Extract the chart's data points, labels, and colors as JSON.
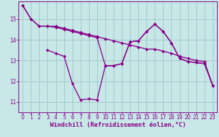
{
  "bg_color": "#c8e8e8",
  "grid_color": "#a0c8c8",
  "line_color": "#880088",
  "marker": "D",
  "markersize": 2.5,
  "linewidth": 1.0,
  "xlabel": "Windchill (Refroidissement éolien,°C)",
  "xlabel_fontsize": 6.5,
  "tick_fontsize": 5.5,
  "xlim": [
    -0.5,
    23.5
  ],
  "ylim": [
    10.5,
    15.85
  ],
  "yticks": [
    11,
    12,
    13,
    14,
    15
  ],
  "xticks": [
    0,
    1,
    2,
    3,
    4,
    5,
    6,
    7,
    8,
    9,
    10,
    11,
    12,
    13,
    14,
    15,
    16,
    17,
    18,
    19,
    20,
    21,
    22,
    23
  ],
  "line1_x": [
    0,
    1,
    2,
    3,
    4,
    5,
    6,
    7,
    8,
    9,
    10,
    11,
    12,
    13,
    14,
    15,
    16,
    17,
    18,
    19,
    20,
    21,
    22,
    23
  ],
  "line1_y": [
    15.65,
    15.0,
    14.65,
    14.65,
    14.65,
    14.55,
    14.45,
    14.35,
    14.25,
    14.15,
    14.05,
    13.95,
    13.85,
    13.75,
    13.65,
    13.55,
    13.55,
    13.45,
    13.35,
    13.2,
    13.1,
    13.0,
    12.95,
    11.8
  ],
  "line2_x": [
    0,
    1,
    2,
    3,
    4,
    5,
    6,
    7,
    8,
    9,
    10,
    11,
    12,
    13,
    14,
    15,
    16,
    17,
    18,
    19,
    20,
    21,
    22,
    23
  ],
  "line2_y": [
    15.65,
    15.0,
    14.65,
    14.65,
    14.6,
    14.5,
    14.4,
    14.3,
    14.2,
    14.1,
    12.75,
    12.75,
    12.85,
    13.9,
    13.95,
    14.4,
    14.75,
    14.4,
    13.85,
    13.1,
    12.95,
    12.9,
    12.85,
    11.8
  ],
  "line3_x": [
    3,
    4,
    5,
    6,
    7,
    8,
    9,
    10,
    11,
    12,
    13,
    14,
    15,
    16,
    17,
    18,
    19,
    20,
    21,
    22,
    23
  ],
  "line3_y": [
    13.5,
    13.35,
    13.2,
    11.9,
    11.1,
    11.15,
    11.1,
    12.75,
    12.75,
    12.85,
    13.9,
    13.95,
    14.4,
    14.75,
    14.4,
    13.85,
    13.1,
    12.95,
    12.9,
    12.85,
    11.8
  ]
}
